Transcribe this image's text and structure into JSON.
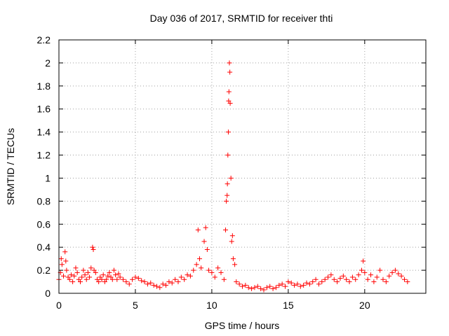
{
  "chart_data": {
    "type": "scatter",
    "title": "Day 036 of 2017, SRMTID for receiver thti",
    "xlabel": "GPS time / hours",
    "ylabel": "SRMTID / TECUs",
    "xlim": [
      0,
      24
    ],
    "ylim": [
      0,
      2.2
    ],
    "grid": true,
    "marker": "+",
    "series_color": "#ff0000",
    "x_ticks": [
      {
        "value": 0,
        "label": "0"
      },
      {
        "value": 5,
        "label": "5"
      },
      {
        "value": 10,
        "label": "10"
      },
      {
        "value": 15,
        "label": "15"
      },
      {
        "value": 20,
        "label": "20"
      }
    ],
    "y_ticks": [
      {
        "value": 0,
        "label": "0"
      },
      {
        "value": 0.2,
        "label": "0.2"
      },
      {
        "value": 0.4,
        "label": "0.4"
      },
      {
        "value": 0.6,
        "label": "0.6"
      },
      {
        "value": 0.8,
        "label": "0.8"
      },
      {
        "value": 1.0,
        "label": "1"
      },
      {
        "value": 1.2,
        "label": "1.2"
      },
      {
        "value": 1.4,
        "label": "1.4"
      },
      {
        "value": 1.6,
        "label": "1.6"
      },
      {
        "value": 1.8,
        "label": "1.8"
      },
      {
        "value": 2.0,
        "label": "2"
      },
      {
        "value": 2.2,
        "label": "2.2"
      }
    ],
    "series": [
      {
        "name": "SRMTID",
        "x": [
          0.0,
          0.1,
          0.15,
          0.2,
          0.3,
          0.4,
          0.45,
          0.5,
          0.6,
          0.7,
          0.8,
          0.9,
          1.0,
          1.1,
          1.2,
          1.3,
          1.4,
          1.5,
          1.6,
          1.7,
          1.8,
          1.9,
          2.0,
          2.1,
          2.2,
          2.25,
          2.3,
          2.4,
          2.5,
          2.6,
          2.7,
          2.8,
          2.9,
          3.0,
          3.1,
          3.2,
          3.3,
          3.4,
          3.5,
          3.6,
          3.7,
          3.8,
          3.9,
          4.0,
          4.2,
          4.4,
          4.6,
          4.8,
          5.0,
          5.2,
          5.4,
          5.6,
          5.8,
          6.0,
          6.2,
          6.4,
          6.6,
          6.8,
          7.0,
          7.2,
          7.4,
          7.6,
          7.8,
          8.0,
          8.2,
          8.4,
          8.6,
          8.8,
          9.0,
          9.1,
          9.2,
          9.3,
          9.5,
          9.6,
          9.7,
          9.8,
          10.0,
          10.2,
          10.4,
          10.6,
          10.8,
          10.9,
          10.95,
          11.0,
          11.02,
          11.05,
          11.08,
          11.1,
          11.12,
          11.15,
          11.18,
          11.2,
          11.25,
          11.3,
          11.35,
          11.4,
          11.5,
          11.6,
          11.8,
          12.0,
          12.2,
          12.4,
          12.6,
          12.8,
          13.0,
          13.2,
          13.4,
          13.6,
          13.8,
          14.0,
          14.2,
          14.4,
          14.6,
          14.8,
          15.0,
          15.2,
          15.4,
          15.6,
          15.8,
          16.0,
          16.2,
          16.4,
          16.6,
          16.8,
          17.0,
          17.2,
          17.4,
          17.6,
          17.8,
          18.0,
          18.2,
          18.4,
          18.6,
          18.8,
          19.0,
          19.2,
          19.4,
          19.6,
          19.8,
          19.9,
          20.0,
          20.2,
          20.4,
          20.6,
          20.8,
          21.0,
          21.2,
          21.4,
          21.6,
          21.8,
          22.0,
          22.2,
          22.4,
          22.6,
          22.8
        ],
        "y": [
          0.12,
          0.18,
          0.3,
          0.25,
          0.15,
          0.36,
          0.28,
          0.2,
          0.14,
          0.12,
          0.16,
          0.1,
          0.15,
          0.22,
          0.18,
          0.12,
          0.1,
          0.14,
          0.2,
          0.16,
          0.12,
          0.18,
          0.14,
          0.22,
          0.4,
          0.38,
          0.2,
          0.18,
          0.12,
          0.1,
          0.14,
          0.12,
          0.16,
          0.1,
          0.12,
          0.15,
          0.18,
          0.14,
          0.12,
          0.2,
          0.16,
          0.12,
          0.17,
          0.14,
          0.12,
          0.1,
          0.08,
          0.12,
          0.14,
          0.13,
          0.11,
          0.1,
          0.08,
          0.09,
          0.07,
          0.06,
          0.05,
          0.08,
          0.07,
          0.1,
          0.09,
          0.12,
          0.1,
          0.14,
          0.12,
          0.16,
          0.15,
          0.2,
          0.25,
          0.55,
          0.3,
          0.22,
          0.45,
          0.57,
          0.38,
          0.2,
          0.18,
          0.14,
          0.22,
          0.18,
          0.12,
          0.55,
          0.8,
          0.85,
          0.95,
          1.2,
          1.4,
          1.67,
          1.75,
          2.0,
          1.92,
          1.65,
          1.0,
          0.45,
          0.5,
          0.3,
          0.25,
          0.1,
          0.08,
          0.06,
          0.07,
          0.05,
          0.04,
          0.05,
          0.06,
          0.04,
          0.03,
          0.05,
          0.06,
          0.04,
          0.05,
          0.07,
          0.08,
          0.06,
          0.1,
          0.09,
          0.07,
          0.08,
          0.06,
          0.07,
          0.09,
          0.08,
          0.1,
          0.12,
          0.08,
          0.1,
          0.12,
          0.14,
          0.16,
          0.12,
          0.1,
          0.13,
          0.15,
          0.12,
          0.1,
          0.14,
          0.12,
          0.16,
          0.2,
          0.28,
          0.18,
          0.12,
          0.16,
          0.1,
          0.14,
          0.2,
          0.12,
          0.1,
          0.15,
          0.18,
          0.2,
          0.17,
          0.15,
          0.12,
          0.1
        ]
      }
    ]
  }
}
